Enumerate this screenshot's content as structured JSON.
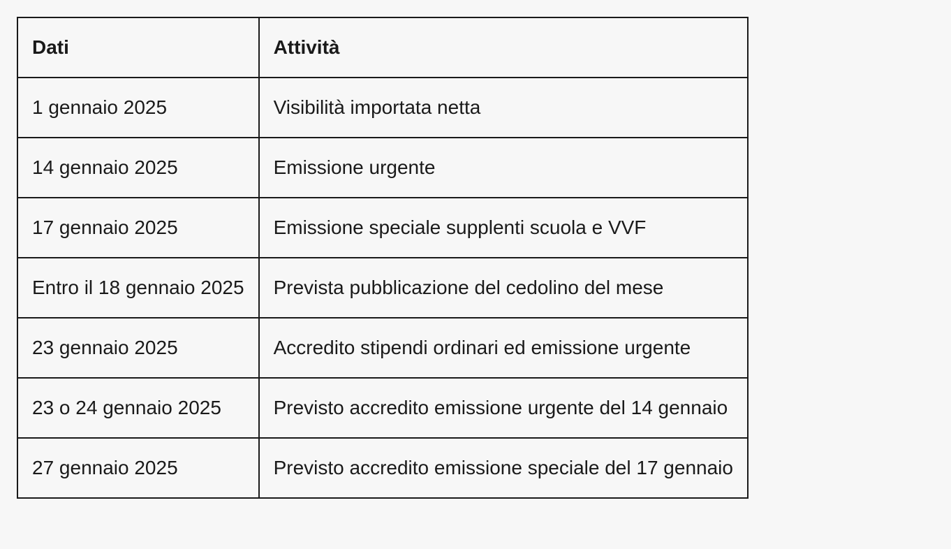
{
  "table": {
    "columns": [
      "Dati",
      "Attività"
    ],
    "rows": [
      [
        "1 gennaio 2025",
        "Visibilità importata netta"
      ],
      [
        "14 gennaio 2025",
        "Emissione urgente"
      ],
      [
        "17 gennaio 2025",
        "Emissione speciale supplenti scuola e VVF"
      ],
      [
        "Entro il 18 gennaio 2025",
        "Prevista pubblicazione del cedolino del mese"
      ],
      [
        "23 gennaio 2025",
        "Accredito stipendi ordinari ed emissione urgente"
      ],
      [
        "23 o 24 gennaio 2025",
        "Previsto accredito emissione urgente del 14 gennaio"
      ],
      [
        "27 gennaio 2025",
        "Previsto accredito emissione speciale del 17 gennaio"
      ]
    ],
    "styling": {
      "border_color": "#1a1a1a",
      "border_width": 2,
      "background_color": "#f7f7f7",
      "text_color": "#1a1a1a",
      "font_size": 28,
      "header_font_weight": 700,
      "cell_font_weight": 400,
      "cell_padding_vertical": 26,
      "cell_padding_horizontal": 20
    }
  }
}
